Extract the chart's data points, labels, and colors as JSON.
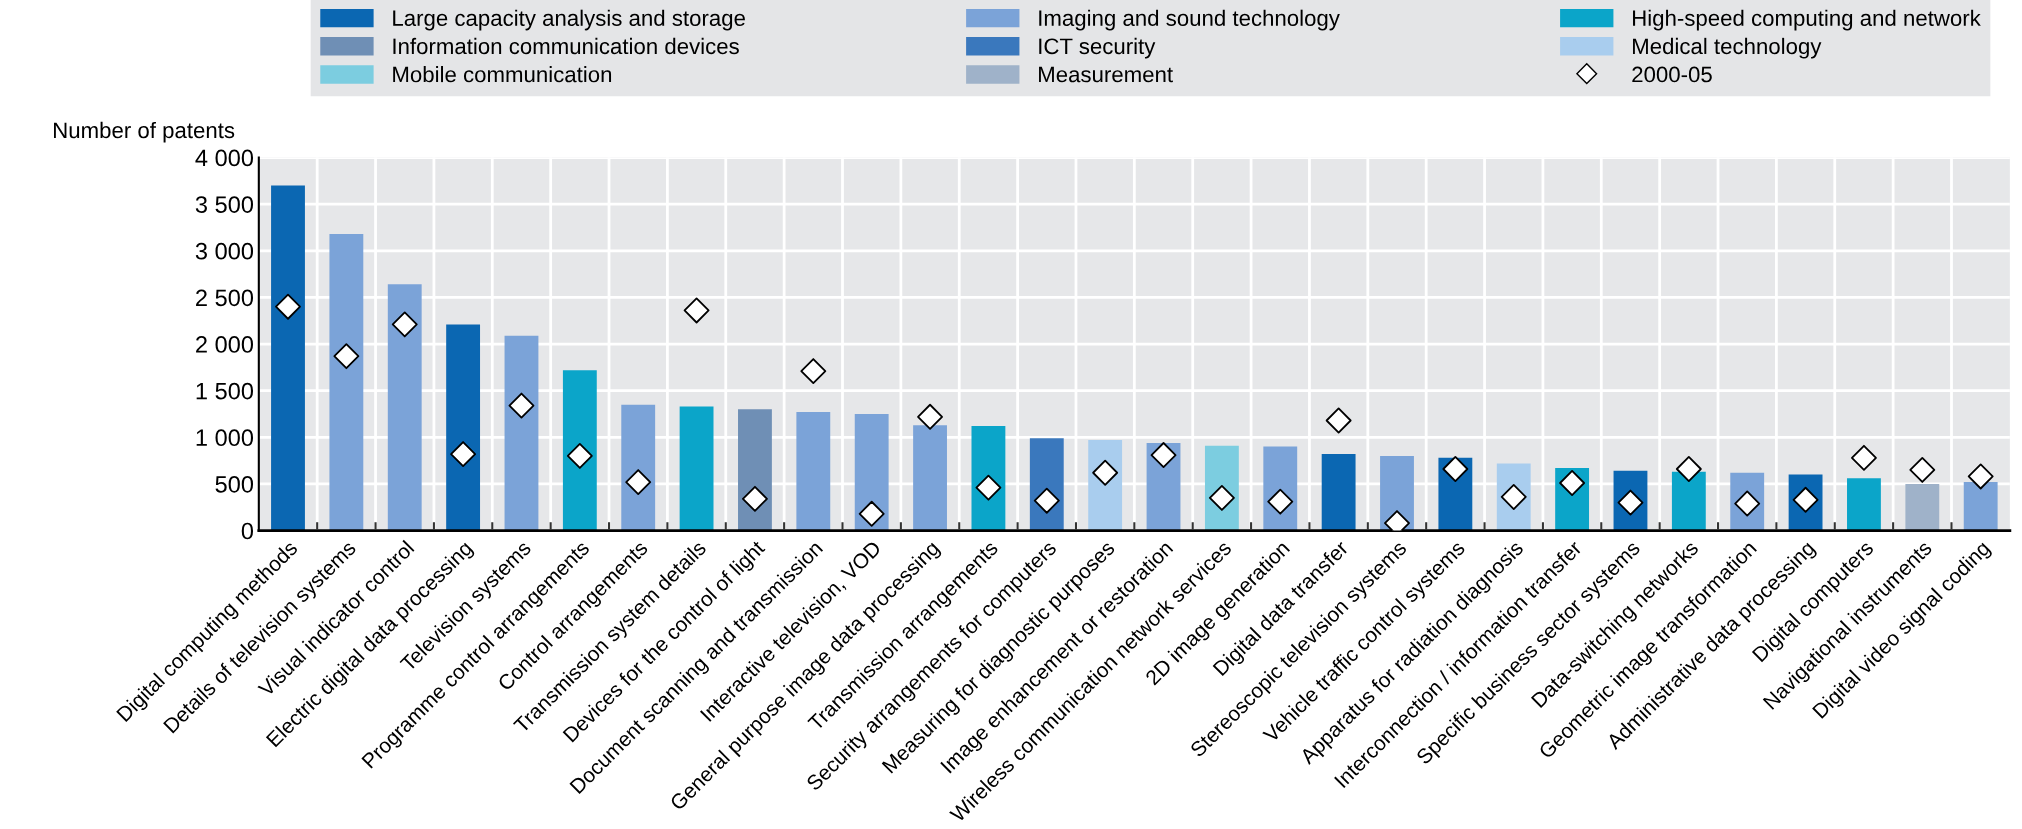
{
  "chart_data": {
    "type": "bar",
    "ylabel": "Number of patents",
    "categories": [
      "Digital computing methods",
      "Details of television systems",
      "Visual indicator control",
      "Electric digital data processing",
      "Television systems",
      "Programme control arrangements",
      "Control arrangements",
      "Transmission system details",
      "Devices for the control of light",
      "Document scanning and transmission",
      "Interactive television, VOD",
      "General purpose image data processing",
      "Transmission arrangements",
      "Security arrangements for computers",
      "Measuring for diagnostic purposes",
      "Image enhancement or restoration",
      "Wireless communication network services",
      "2D image generation",
      "Digital data transfer",
      "Stereoscopic television systems",
      "Vehicle traffic control systems",
      "Apparatus for radiation diagnosis",
      "Interconnection / information transfer",
      "Specific business sector systems",
      "Data-switching networks",
      "Geometric image transformation",
      "Administrative data processing",
      "Digital computers",
      "Navigational instruments",
      "Digital video signal coding"
    ],
    "series": [
      {
        "name": "Large capacity analysis and storage",
        "color": "#0b67b2",
        "values": [
          3700,
          null,
          null,
          2210,
          null,
          null,
          null,
          null,
          null,
          null,
          null,
          null,
          null,
          null,
          null,
          null,
          null,
          null,
          820,
          null,
          780,
          null,
          null,
          640,
          null,
          null,
          600,
          null,
          null,
          null
        ]
      },
      {
        "name": "Imaging and sound technology",
        "color": "#7ba3d8",
        "values": [
          null,
          3180,
          2640,
          null,
          2090,
          null,
          1350,
          null,
          null,
          1270,
          1250,
          1130,
          null,
          null,
          null,
          940,
          null,
          900,
          null,
          800,
          null,
          null,
          null,
          null,
          null,
          620,
          null,
          null,
          null,
          520
        ]
      },
      {
        "name": "High-speed computing and network",
        "color": "#0ba5c9",
        "values": [
          null,
          null,
          null,
          null,
          null,
          1720,
          null,
          1330,
          null,
          null,
          null,
          null,
          1120,
          null,
          null,
          null,
          null,
          null,
          null,
          null,
          null,
          null,
          670,
          null,
          630,
          null,
          null,
          560,
          null,
          null
        ]
      },
      {
        "name": "Information communication devices",
        "color": "#6f8fb5",
        "values": [
          null,
          null,
          null,
          null,
          null,
          null,
          null,
          null,
          1300,
          null,
          null,
          null,
          null,
          null,
          null,
          null,
          null,
          null,
          null,
          null,
          null,
          null,
          null,
          null,
          null,
          null,
          null,
          null,
          null,
          null
        ]
      },
      {
        "name": "ICT security",
        "color": "#3a78bd",
        "values": [
          null,
          null,
          null,
          null,
          null,
          null,
          null,
          null,
          null,
          null,
          null,
          null,
          null,
          990,
          null,
          null,
          null,
          null,
          null,
          null,
          null,
          null,
          null,
          null,
          null,
          null,
          null,
          null,
          null,
          null
        ]
      },
      {
        "name": "Medical technology",
        "color": "#a9cdee",
        "values": [
          null,
          null,
          null,
          null,
          null,
          null,
          null,
          null,
          null,
          null,
          null,
          null,
          null,
          null,
          970,
          null,
          null,
          null,
          null,
          null,
          null,
          720,
          null,
          null,
          null,
          null,
          null,
          null,
          null,
          null
        ]
      },
      {
        "name": "Mobile communication",
        "color": "#7ccde0",
        "values": [
          null,
          null,
          null,
          null,
          null,
          null,
          null,
          null,
          null,
          null,
          null,
          null,
          null,
          null,
          null,
          null,
          910,
          null,
          null,
          null,
          null,
          null,
          null,
          null,
          null,
          null,
          null,
          null,
          null,
          null
        ]
      },
      {
        "name": "Measurement",
        "color": "#9fb2c9",
        "values": [
          null,
          null,
          null,
          null,
          null,
          null,
          null,
          null,
          null,
          null,
          null,
          null,
          null,
          null,
          null,
          null,
          null,
          null,
          null,
          null,
          null,
          null,
          null,
          null,
          null,
          null,
          null,
          null,
          500,
          null
        ]
      },
      {
        "name": "2000-05",
        "type": "scatter",
        "marker": "diamond",
        "color": "#ffffff",
        "values": [
          2400,
          1870,
          2210,
          820,
          1340,
          800,
          520,
          2360,
          340,
          1710,
          180,
          1220,
          460,
          320,
          620,
          810,
          350,
          310,
          1180,
          80,
          660,
          360,
          510,
          300,
          660,
          290,
          330,
          780,
          650,
          580
        ]
      }
    ],
    "ylim": [
      0,
      4000
    ],
    "yticks": [
      0,
      500,
      {
        "value": 1000,
        "label": "1 000"
      },
      {
        "value": 1500,
        "label": "1 500"
      },
      {
        "value": 2000,
        "label": "2 000"
      },
      {
        "value": 2500,
        "label": "2 500"
      },
      {
        "value": 3000,
        "label": "3 000"
      },
      {
        "value": 3500,
        "label": "3 500"
      },
      {
        "value": 4000,
        "label": "4 000"
      }
    ],
    "grid": true,
    "legend": "top"
  }
}
